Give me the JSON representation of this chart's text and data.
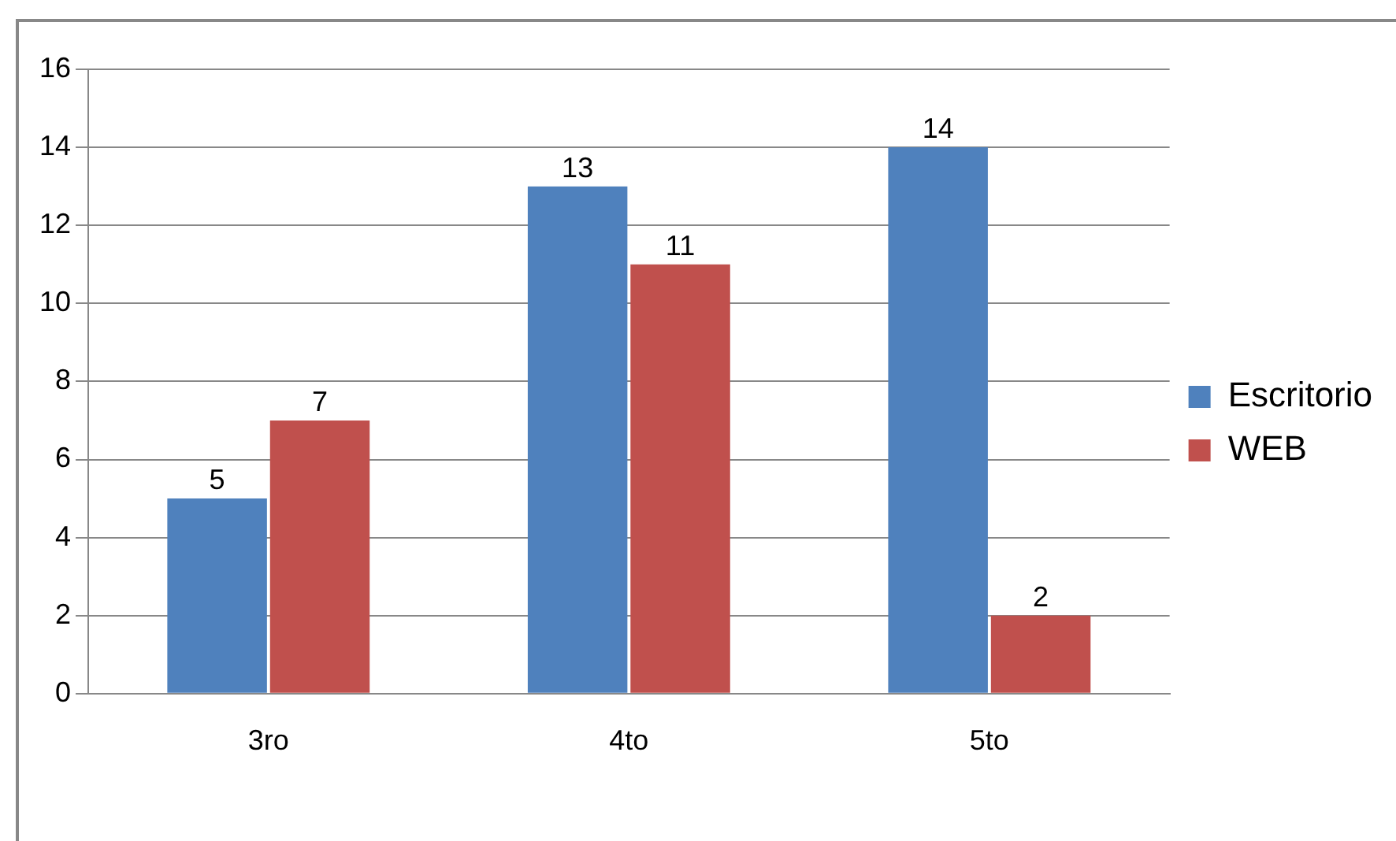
{
  "chart_data": {
    "type": "bar",
    "categories": [
      "3ro",
      "4to",
      "5to"
    ],
    "series": [
      {
        "name": "Escritorio",
        "color": "#4f81bd",
        "values": [
          5,
          13,
          14
        ]
      },
      {
        "name": "WEB",
        "color": "#c0504d",
        "values": [
          7,
          11,
          2
        ]
      }
    ],
    "ylim": [
      0,
      16
    ],
    "yticks": [
      0,
      2,
      4,
      6,
      8,
      10,
      12,
      14,
      16
    ],
    "grid": "y",
    "legend": "right",
    "data_labels": true
  }
}
